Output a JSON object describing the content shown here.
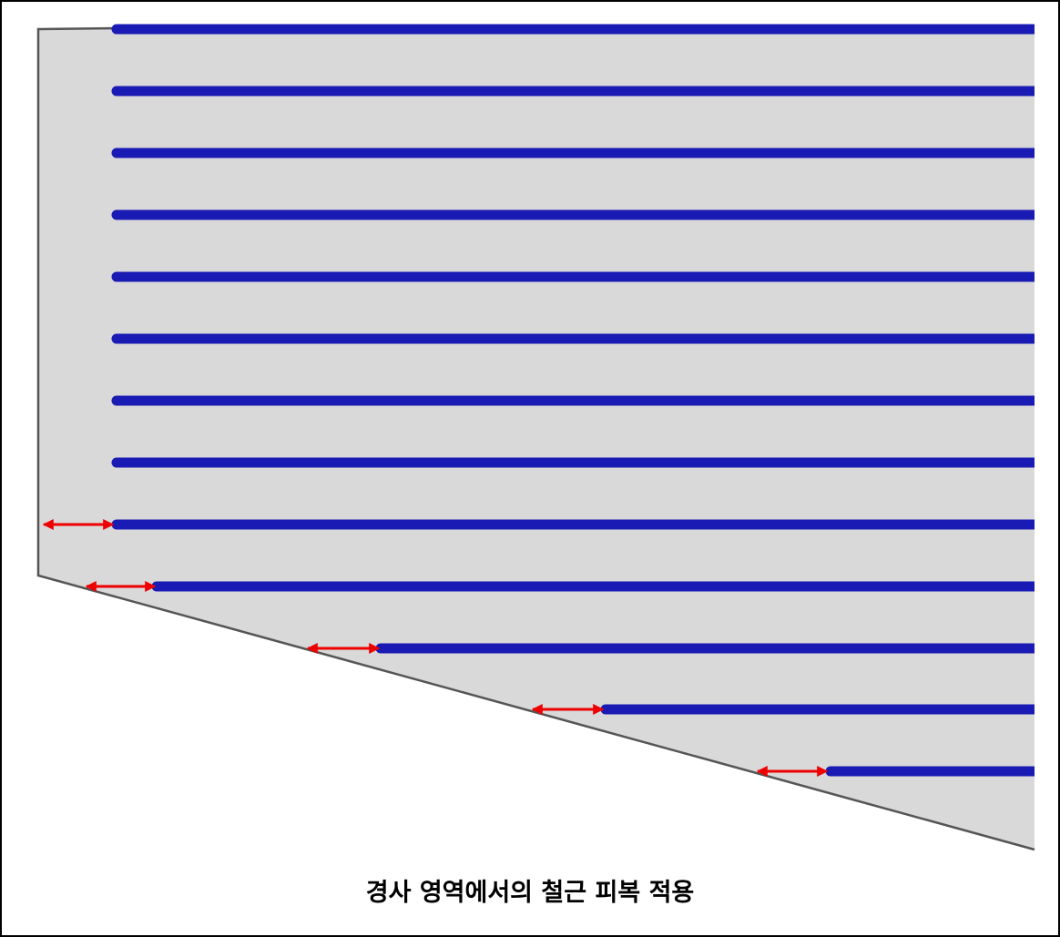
{
  "caption": "경사 영역에서의 철근 피복 적용"
}
